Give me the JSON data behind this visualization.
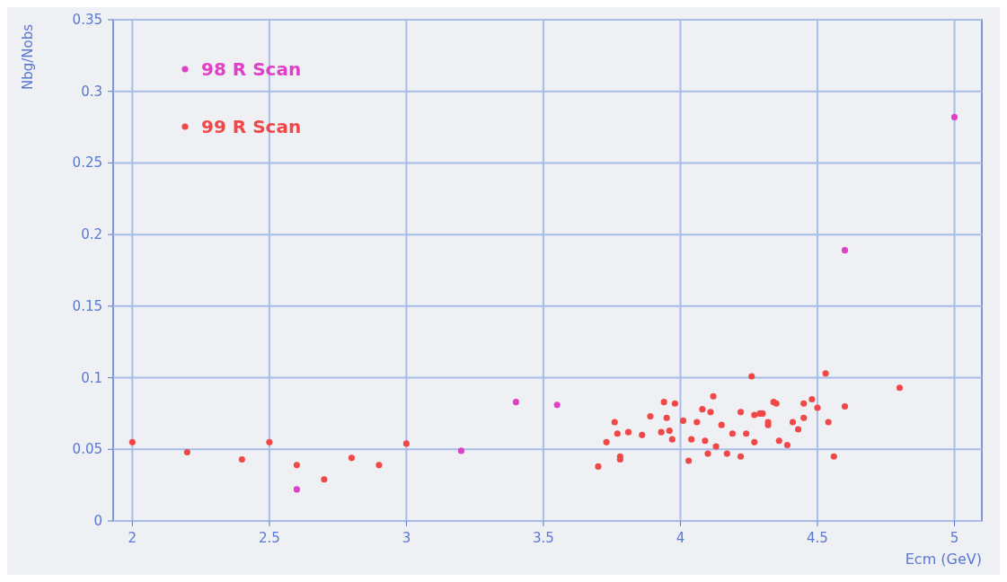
{
  "chart_data": {
    "type": "scatter",
    "xlabel": "Ecm (GeV)",
    "ylabel": "Nbg/Nobs",
    "xlim": [
      1.93,
      5.1
    ],
    "ylim": [
      0,
      0.35
    ],
    "xticks": [
      2,
      2.5,
      3,
      3.5,
      4,
      4.5,
      5
    ],
    "yticks": [
      0,
      0.05,
      0.1,
      0.15,
      0.2,
      0.25,
      0.3,
      0.35
    ],
    "grid": true,
    "legend": "top left",
    "marker": "circle",
    "series": [
      {
        "name": "98 R Scan",
        "color": "#e040c8",
        "x": [
          2.6,
          3.2,
          3.4,
          3.55,
          4.6,
          5.0
        ],
        "values": [
          0.022,
          0.049,
          0.083,
          0.081,
          0.189,
          0.282
        ]
      },
      {
        "name": "99 R Scan",
        "color": "#f04848",
        "x": [
          2.0,
          2.2,
          2.4,
          2.5,
          2.6,
          2.7,
          2.8,
          2.9,
          3.0,
          3.7,
          3.73,
          3.76,
          3.77,
          3.78,
          3.78,
          3.81,
          3.86,
          3.89,
          3.93,
          3.94,
          3.95,
          3.96,
          3.97,
          3.98,
          4.01,
          4.03,
          4.04,
          4.06,
          4.08,
          4.09,
          4.1,
          4.11,
          4.12,
          4.13,
          4.15,
          4.17,
          4.19,
          4.22,
          4.22,
          4.24,
          4.26,
          4.27,
          4.27,
          4.29,
          4.3,
          4.32,
          4.32,
          4.34,
          4.35,
          4.36,
          4.39,
          4.41,
          4.43,
          4.45,
          4.45,
          4.48,
          4.5,
          4.53,
          4.54,
          4.56,
          4.6,
          4.8
        ],
        "values": [
          0.055,
          0.048,
          0.043,
          0.055,
          0.039,
          0.029,
          0.044,
          0.039,
          0.054,
          0.038,
          0.055,
          0.069,
          0.061,
          0.045,
          0.043,
          0.062,
          0.06,
          0.073,
          0.062,
          0.083,
          0.072,
          0.063,
          0.057,
          0.082,
          0.07,
          0.042,
          0.057,
          0.069,
          0.078,
          0.056,
          0.047,
          0.076,
          0.087,
          0.052,
          0.067,
          0.047,
          0.061,
          0.076,
          0.045,
          0.061,
          0.101,
          0.074,
          0.055,
          0.075,
          0.075,
          0.069,
          0.067,
          0.083,
          0.082,
          0.056,
          0.053,
          0.069,
          0.064,
          0.072,
          0.082,
          0.085,
          0.079,
          0.103,
          0.069,
          0.045,
          0.08,
          0.093
        ]
      }
    ]
  }
}
